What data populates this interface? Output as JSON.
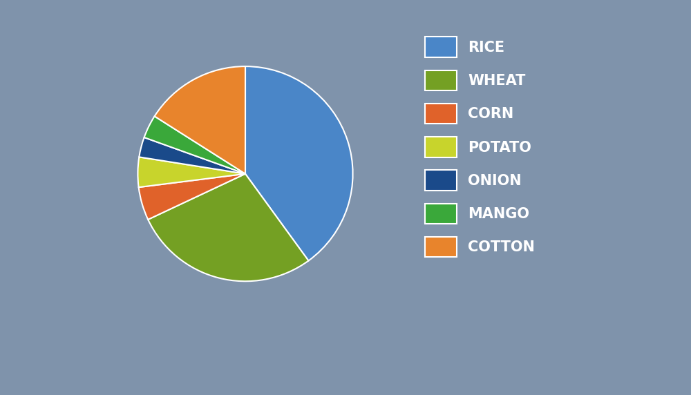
{
  "chart_data": {
    "type": "pie",
    "categories": [
      "RICE",
      "WHEAT",
      "CORN",
      "POTATO",
      "ONION",
      "MANGO",
      "COTTON"
    ],
    "values": [
      40,
      28,
      5,
      4.5,
      3,
      3.5,
      16
    ],
    "colors": [
      "#4a86c8",
      "#74a023",
      "#e0622a",
      "#c8d42c",
      "#1a4a8a",
      "#3aa83a",
      "#e8842c"
    ],
    "legend": "right"
  }
}
